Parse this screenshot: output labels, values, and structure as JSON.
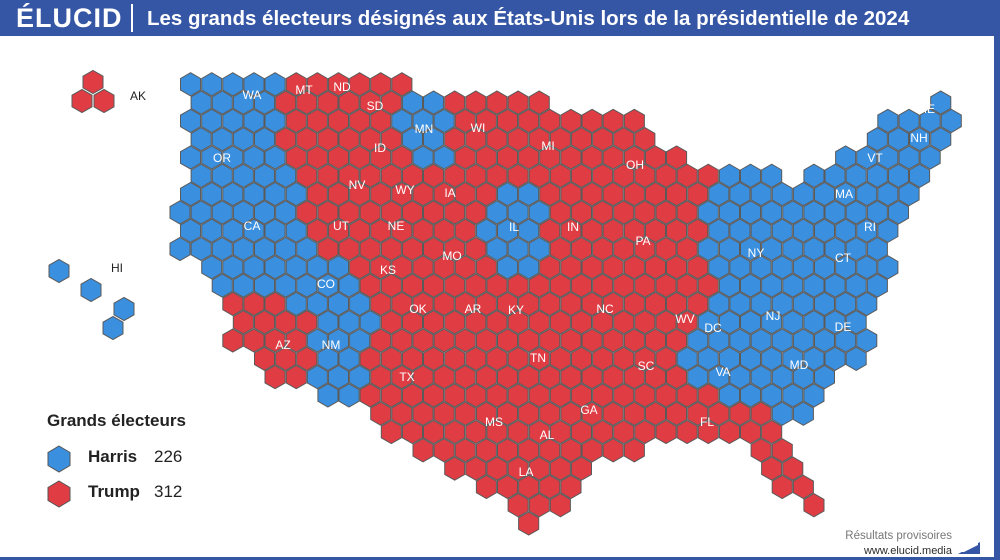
{
  "header": {
    "brand": "ÉLUCID",
    "title": "Les grands électeurs désignés aux États-Unis lors de la présidentielle de 2024"
  },
  "colors": {
    "harris": "#3a8fdf",
    "trump": "#e03c44",
    "header": "#3555a5"
  },
  "legend": {
    "title": "Grands électeurs",
    "items": [
      {
        "name": "Harris",
        "count": "226",
        "party": "harris"
      },
      {
        "name": "Trump",
        "count": "312",
        "party": "trump"
      }
    ]
  },
  "states": [
    {
      "code": "AK",
      "party": "trump"
    },
    {
      "code": "HI",
      "party": "harris"
    },
    {
      "code": "WA",
      "party": "harris"
    },
    {
      "code": "OR",
      "party": "harris"
    },
    {
      "code": "CA",
      "party": "harris"
    },
    {
      "code": "NV",
      "party": "trump"
    },
    {
      "code": "UT",
      "party": "trump"
    },
    {
      "code": "AZ",
      "party": "trump"
    },
    {
      "code": "MT",
      "party": "trump"
    },
    {
      "code": "ID",
      "party": "trump"
    },
    {
      "code": "WY",
      "party": "trump"
    },
    {
      "code": "CO",
      "party": "harris"
    },
    {
      "code": "NM",
      "party": "harris"
    },
    {
      "code": "ND",
      "party": "trump"
    },
    {
      "code": "SD",
      "party": "trump"
    },
    {
      "code": "NE",
      "party": "trump"
    },
    {
      "code": "KS",
      "party": "trump"
    },
    {
      "code": "OK",
      "party": "trump"
    },
    {
      "code": "TX",
      "party": "trump"
    },
    {
      "code": "MN",
      "party": "harris"
    },
    {
      "code": "IA",
      "party": "trump"
    },
    {
      "code": "MO",
      "party": "trump"
    },
    {
      "code": "AR",
      "party": "trump"
    },
    {
      "code": "LA",
      "party": "trump"
    },
    {
      "code": "WI",
      "party": "trump"
    },
    {
      "code": "IL",
      "party": "harris"
    },
    {
      "code": "MI",
      "party": "trump"
    },
    {
      "code": "IN",
      "party": "trump"
    },
    {
      "code": "OH",
      "party": "trump"
    },
    {
      "code": "KY",
      "party": "trump"
    },
    {
      "code": "TN",
      "party": "trump"
    },
    {
      "code": "MS",
      "party": "trump"
    },
    {
      "code": "AL",
      "party": "trump"
    },
    {
      "code": "GA",
      "party": "trump"
    },
    {
      "code": "FL",
      "party": "trump"
    },
    {
      "code": "SC",
      "party": "trump"
    },
    {
      "code": "NC",
      "party": "trump"
    },
    {
      "code": "VA",
      "party": "harris"
    },
    {
      "code": "WV",
      "party": "trump"
    },
    {
      "code": "PA",
      "party": "trump"
    },
    {
      "code": "NY",
      "party": "harris"
    },
    {
      "code": "NJ",
      "party": "harris"
    },
    {
      "code": "DE",
      "party": "harris"
    },
    {
      "code": "MD",
      "party": "harris"
    },
    {
      "code": "DC",
      "party": "harris"
    },
    {
      "code": "CT",
      "party": "harris"
    },
    {
      "code": "RI",
      "party": "harris"
    },
    {
      "code": "MA",
      "party": "harris"
    },
    {
      "code": "VT",
      "party": "harris"
    },
    {
      "code": "NH",
      "party": "harris"
    },
    {
      "code": "ME",
      "party": "harris"
    }
  ],
  "footer": {
    "status": "Résultats provisoires",
    "url": "www.elucid.media"
  }
}
